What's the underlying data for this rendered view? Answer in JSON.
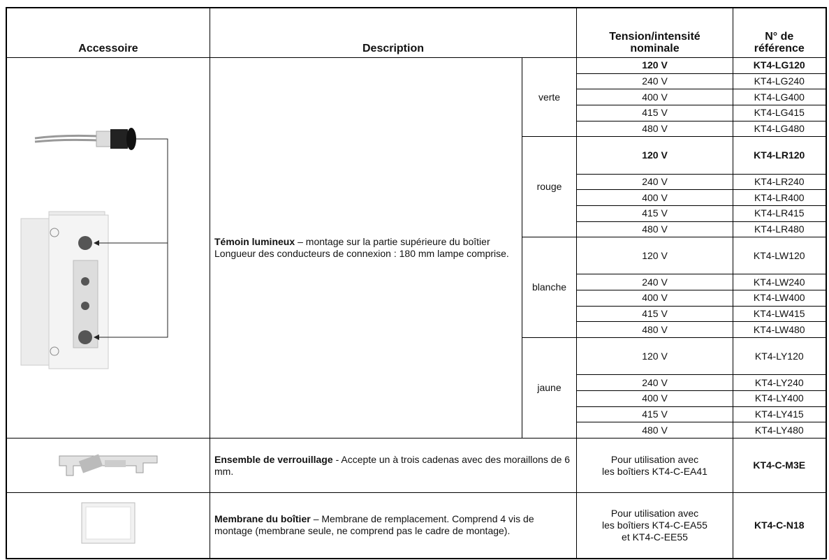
{
  "header": {
    "accessory": "Accessoire",
    "description": "Description",
    "rating": [
      "Tension/intensité",
      "nominale"
    ],
    "reference": [
      "N° de",
      "référence"
    ]
  },
  "indicator": {
    "name": "Témoin lumineux",
    "text": "– montage sur la partie supérieure du boîtier Longueur des conducteurs de connexion : 180 mm lampe comprise.",
    "groups": [
      {
        "color": "verte",
        "items": [
          {
            "voltage": "120 V",
            "reference": "KT4-LG120"
          },
          {
            "voltage": "240 V",
            "reference": "KT4-LG240"
          },
          {
            "voltage": "400 V",
            "reference": "KT4-LG400"
          },
          {
            "voltage": "415 V",
            "reference": "KT4-LG415"
          },
          {
            "voltage": "480 V",
            "reference": "KT4-LG480"
          }
        ]
      },
      {
        "color": "rouge",
        "items": [
          {
            "voltage": "120 V",
            "reference": "KT4-LR120"
          },
          {
            "voltage": "240 V",
            "reference": "KT4-LR240"
          },
          {
            "voltage": "400 V",
            "reference": "KT4-LR400"
          },
          {
            "voltage": "415 V",
            "reference": "KT4-LR415"
          },
          {
            "voltage": "480 V",
            "reference": "KT4-LR480"
          }
        ]
      },
      {
        "color": "blanche",
        "items": [
          {
            "voltage": "120 V",
            "reference": "KT4-LW120"
          },
          {
            "voltage": "240 V",
            "reference": "KT4-LW240"
          },
          {
            "voltage": "400 V",
            "reference": "KT4-LW400"
          },
          {
            "voltage": "415 V",
            "reference": "KT4-LW415"
          },
          {
            "voltage": "480 V",
            "reference": "KT4-LW480"
          }
        ]
      },
      {
        "color": "jaune",
        "items": [
          {
            "voltage": "120 V",
            "reference": "KT4-LY120"
          },
          {
            "voltage": "240 V",
            "reference": "KT4-LY240"
          },
          {
            "voltage": "400 V",
            "reference": "KT4-LY400"
          },
          {
            "voltage": "415 V",
            "reference": "KT4-LY415"
          },
          {
            "voltage": "480 V",
            "reference": "KT4-LY480"
          }
        ]
      }
    ]
  },
  "rows": [
    {
      "name": "Ensemble de verrouillage",
      "text": "- Accepte un à trois cadenas avec des moraillons de 6 mm.",
      "rating": [
        "Pour utilisation avec",
        "les boîtiers KT4-C-EA41"
      ],
      "reference": "KT4-C-M3E"
    },
    {
      "name": "Membrane du boîtier",
      "text": "– Membrane de remplacement. Comprend 4 vis de montage (membrane seule, ne comprend pas le cadre de montage).",
      "rating": [
        "Pour utilisation avec",
        "les boîtiers KT4-C-EA55",
        "et KT4-C-EE55"
      ],
      "reference": "KT4-C-N18"
    }
  ]
}
